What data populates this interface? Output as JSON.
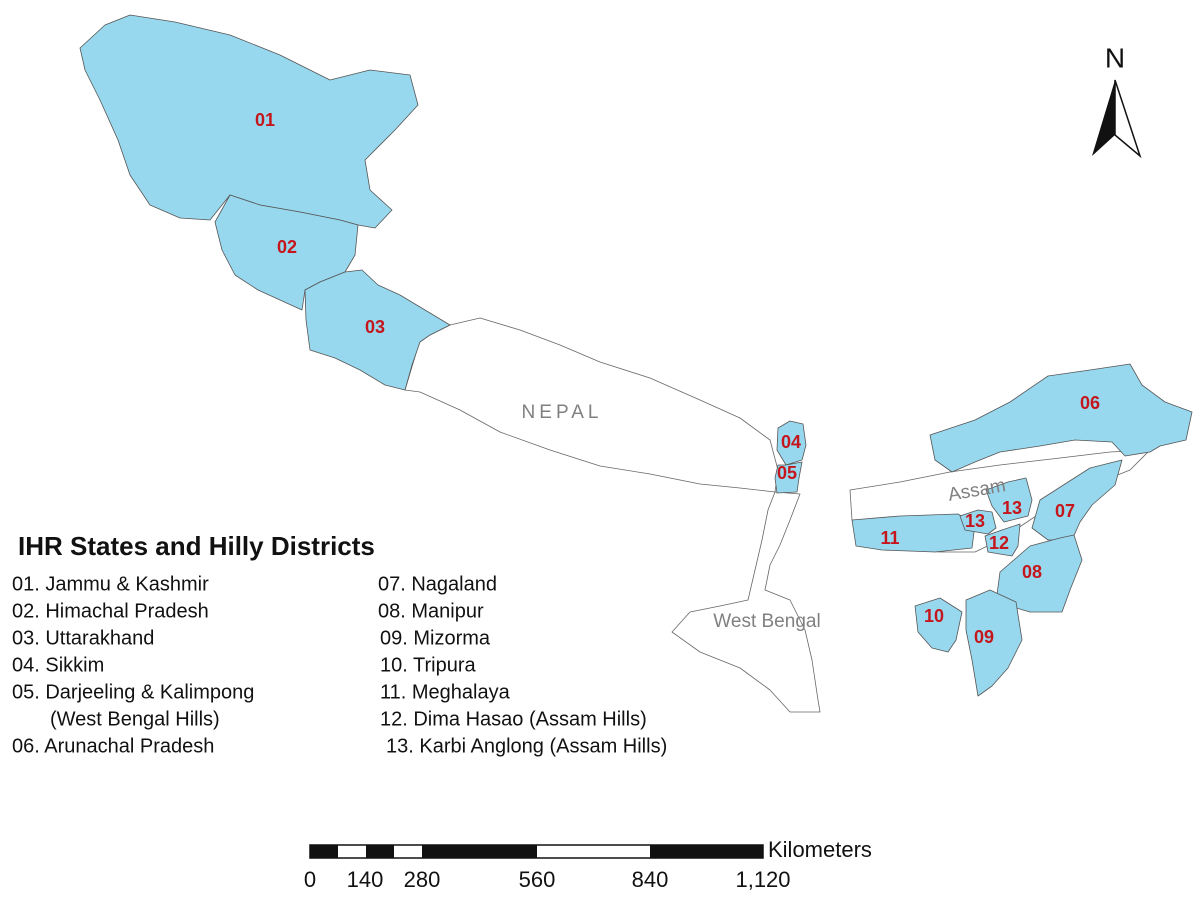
{
  "map": {
    "region_codes": [
      "01",
      "02",
      "03",
      "04",
      "05",
      "06",
      "07",
      "08",
      "09",
      "10",
      "11",
      "12",
      "13",
      "13"
    ],
    "place_names": [
      "NEPAL",
      "West Bengal",
      "Assam"
    ]
  },
  "north_arrow": {
    "label": "N"
  },
  "legend": {
    "title": "IHR States and Hilly Districts",
    "left": [
      "01. Jammu & Kashmir",
      "02. Himachal Pradesh",
      "03. Uttarakhand",
      "04. Sikkim",
      "05. Darjeeling & Kalimpong",
      "(West Bengal Hills)",
      "06. Arunachal Pradesh"
    ],
    "right": [
      "07. Nagaland",
      "08. Manipur",
      "09. Mizorma",
      "10. Tripura",
      "11. Meghalaya",
      "12. Dima Hasao (Assam Hills)",
      "13. Karbi Anglong  (Assam Hills)"
    ]
  },
  "scale_bar": {
    "unit": "Kilometers",
    "labels": [
      "0",
      "140",
      "280",
      "560",
      "840",
      "1,120"
    ]
  }
}
